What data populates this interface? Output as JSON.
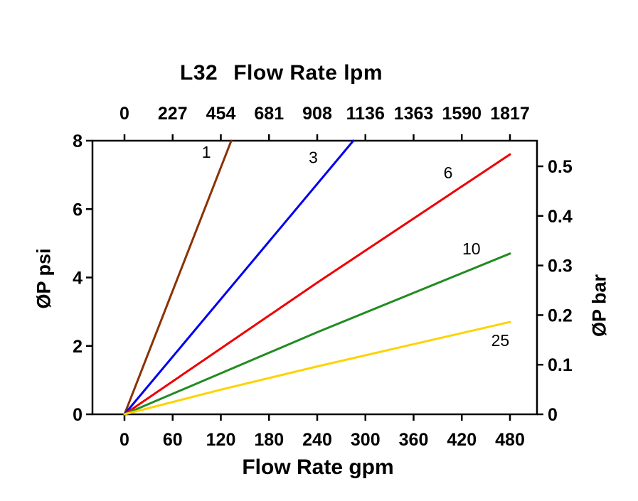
{
  "chart_data": {
    "type": "line",
    "title": "L32",
    "grid": false,
    "legend": "inline-line-labels",
    "top_axis": {
      "label": "Flow Rate lpm",
      "ticks": [
        0,
        227,
        454,
        681,
        908,
        1136,
        1363,
        1590,
        1817
      ]
    },
    "bottom_axis": {
      "label": "Flow Rate gpm",
      "ticks": [
        0,
        60,
        120,
        180,
        240,
        300,
        360,
        420,
        480
      ],
      "range": [
        0,
        480
      ]
    },
    "left_axis": {
      "label": "ØP psi",
      "ticks": [
        0,
        2,
        4,
        6,
        8
      ],
      "range": [
        0,
        8
      ]
    },
    "right_axis": {
      "label": "ØP bar",
      "ticks": [
        0,
        0.1,
        0.2,
        0.3,
        0.4,
        0.5
      ],
      "range": [
        0,
        0.5516
      ]
    },
    "series": [
      {
        "name": "1",
        "color": "#8B3103",
        "points": [
          [
            0,
            0
          ],
          [
            133,
            8
          ]
        ],
        "label_at": [
          102,
          7.5
        ]
      },
      {
        "name": "3",
        "color": "#0000EE",
        "points": [
          [
            0,
            0
          ],
          [
            285,
            8
          ]
        ],
        "label_at": [
          235,
          7.35
        ]
      },
      {
        "name": "6",
        "color": "#EE0000",
        "points": [
          [
            0,
            0
          ],
          [
            240,
            3.85
          ],
          [
            480,
            7.6
          ]
        ],
        "label_at": [
          403,
          6.9
        ]
      },
      {
        "name": "10",
        "color": "#228B22",
        "points": [
          [
            0,
            0
          ],
          [
            240,
            2.4
          ],
          [
            480,
            4.7
          ]
        ],
        "label_at": [
          432,
          4.68
        ]
      },
      {
        "name": "25",
        "color": "#FFD200",
        "points": [
          [
            0,
            0
          ],
          [
            120,
            0.72
          ],
          [
            240,
            1.4
          ],
          [
            360,
            2.05
          ],
          [
            480,
            2.7
          ]
        ],
        "label_at": [
          468,
          2.0
        ]
      }
    ]
  }
}
